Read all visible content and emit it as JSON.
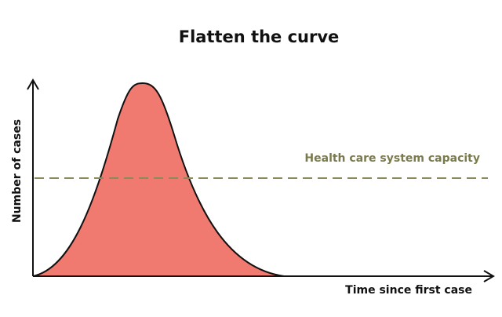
{
  "title": "Flatten the curve",
  "y_axis_label": "Number of cases",
  "x_axis_label": "Time since first case",
  "capacity_label": "Health care system capacity"
}
